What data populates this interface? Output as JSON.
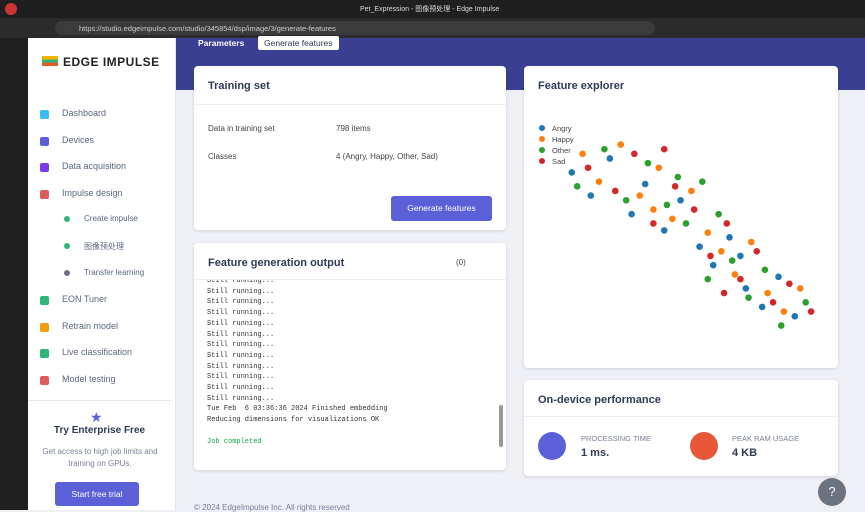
{
  "browser": {
    "tab_title": "Pet_Expression - 图像预处理 - Edge Impulse",
    "url": "https://studio.edgeimpulse.com/studio/345854/dsp/image/3/generate-features"
  },
  "sidebar": {
    "logo": "EDGE IMPULSE",
    "items": [
      "Dashboard",
      "Devices",
      "Data acquisition",
      "Impulse design",
      "Create impulse",
      "图像预处理",
      "Transfer learning",
      "EON Tuner",
      "Retrain model",
      "Live classification",
      "Model testing"
    ],
    "enterprise": {
      "title": "Try Enterprise Free",
      "text": "Get access to high job limits and training on GPUs.",
      "button": "Start free trial"
    }
  },
  "tabs": [
    "Parameters",
    "Generate features"
  ],
  "training_set": {
    "title": "Training set",
    "rows": [
      [
        "Data in training set",
        "798 items"
      ],
      [
        "Classes",
        "4 (Angry, Happy, Other, Sad)"
      ]
    ],
    "button": "Generate features"
  },
  "output": {
    "title": "Feature generation output",
    "badge": "(0)",
    "log": [
      "Still running...",
      "Still running...",
      "Still running...",
      "Still running...",
      "Still running...",
      "Still running...",
      "Still running...",
      "Still running...",
      "Still running...",
      "Still running...",
      "Still running...",
      "Still running...",
      "Tue Feb  6 03:36:36 2024 Finished embedding",
      "Reducing dimensions for visualizations OK"
    ],
    "status": "Job completed"
  },
  "chart_data": {
    "type": "scatter",
    "title": "Feature explorer",
    "xlim": [
      0,
      100
    ],
    "ylim": [
      0,
      100
    ],
    "series": [
      {
        "name": "Angry",
        "color": "#1f77b4",
        "x": [
          8,
          15,
          22,
          30,
          35,
          42,
          48,
          55,
          60,
          66,
          72,
          78,
          84,
          90,
          70
        ],
        "values": [
          80,
          70,
          86,
          62,
          75,
          55,
          68,
          48,
          40,
          52,
          30,
          22,
          35,
          18,
          44
        ]
      },
      {
        "name": "Happy",
        "color": "#ff7f0e",
        "x": [
          12,
          18,
          26,
          33,
          40,
          45,
          52,
          58,
          63,
          68,
          74,
          80,
          86,
          92,
          38
        ],
        "values": [
          88,
          76,
          92,
          70,
          82,
          60,
          72,
          54,
          46,
          36,
          50,
          28,
          20,
          30,
          64
        ]
      },
      {
        "name": "Other",
        "color": "#2ca02c",
        "x": [
          10,
          20,
          28,
          36,
          43,
          50,
          56,
          62,
          67,
          73,
          79,
          85,
          94,
          47,
          58
        ],
        "values": [
          74,
          90,
          68,
          84,
          66,
          58,
          76,
          62,
          42,
          26,
          38,
          14,
          24,
          78,
          34
        ]
      },
      {
        "name": "Sad",
        "color": "#d62728",
        "x": [
          14,
          24,
          31,
          38,
          46,
          53,
          59,
          65,
          70,
          76,
          82,
          88,
          96,
          42,
          64
        ],
        "values": [
          82,
          72,
          88,
          58,
          74,
          64,
          44,
          58,
          34,
          46,
          24,
          32,
          20,
          90,
          28
        ]
      }
    ]
  },
  "performance": {
    "title": "On-device performance",
    "processing_label": "PROCESSING TIME",
    "processing_value": "1 ms.",
    "ram_label": "PEAK RAM USAGE",
    "ram_value": "4 KB"
  },
  "footer": "© 2024 EdgeImpulse Inc. All rights reserved"
}
